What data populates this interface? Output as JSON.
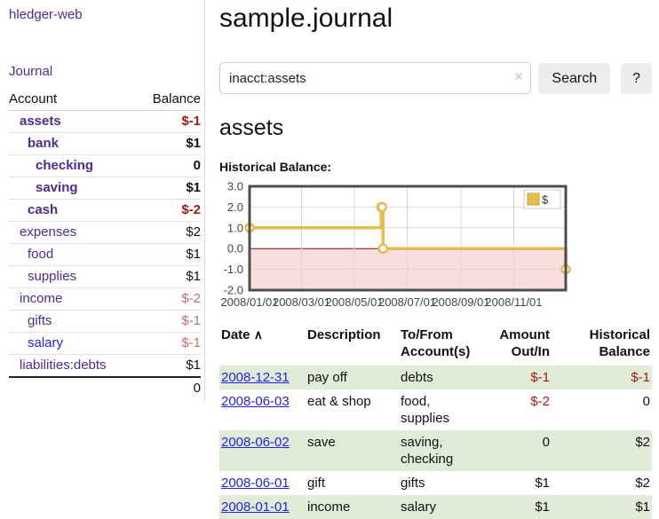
{
  "app": {
    "brand": "hledger-web",
    "nav": {
      "journal": "Journal"
    }
  },
  "sidebar": {
    "header": {
      "account": "Account",
      "balance": "Balance"
    },
    "accounts": [
      {
        "name": "assets",
        "depth": 1,
        "bold": true,
        "link_color": "purple",
        "balance": "$-1",
        "balance_style": "neg-strong"
      },
      {
        "name": "bank",
        "depth": 2,
        "bold": true,
        "link_color": "purple",
        "balance": "$1",
        "balance_style": "bold"
      },
      {
        "name": "checking",
        "depth": 3,
        "bold": true,
        "link_color": "purple",
        "balance": "0",
        "balance_style": "bold"
      },
      {
        "name": "saving",
        "depth": 3,
        "bold": true,
        "link_color": "purple",
        "balance": "$1",
        "balance_style": "bold"
      },
      {
        "name": "cash",
        "depth": 2,
        "bold": true,
        "link_color": "purple",
        "balance": "$-2",
        "balance_style": "neg-strong"
      },
      {
        "name": "expenses",
        "depth": 1,
        "bold": false,
        "link_color": "purple",
        "balance": "$2",
        "balance_style": "normal"
      },
      {
        "name": "food",
        "depth": 2,
        "bold": false,
        "link_color": "purple",
        "balance": "$1",
        "balance_style": "normal"
      },
      {
        "name": "supplies",
        "depth": 2,
        "bold": false,
        "link_color": "purple",
        "balance": "$1",
        "balance_style": "normal"
      },
      {
        "name": "income",
        "depth": 1,
        "bold": false,
        "link_color": "purple",
        "balance": "$-2",
        "balance_style": "neg-soft"
      },
      {
        "name": "gifts",
        "depth": 2,
        "bold": false,
        "link_color": "purple",
        "balance": "$-1",
        "balance_style": "neg-soft"
      },
      {
        "name": "salary",
        "depth": 2,
        "bold": false,
        "link_color": "blue",
        "balance": "$-1",
        "balance_style": "neg-soft"
      },
      {
        "name": "liabilities:debts",
        "depth": 1,
        "bold": false,
        "link_color": "purple",
        "balance": "$1",
        "balance_style": "normal"
      }
    ],
    "total": "0"
  },
  "main": {
    "title": "sample.journal",
    "search": {
      "value": "inacct:assets",
      "clear_icon": "×",
      "button_label": "Search",
      "help_label": "?"
    },
    "account_heading": "assets",
    "chart_heading": "Historical Balance:"
  },
  "chart_data": {
    "type": "line",
    "step": true,
    "title": "Historical Balance",
    "x_start": "2008-01-01",
    "x_end": "2008-12-31",
    "ylim": [
      -2,
      3
    ],
    "y_ticks": [
      "3.0",
      "2.0",
      "1.0",
      "0.0",
      "-1.0",
      "-2.0"
    ],
    "x_ticks": [
      {
        "date": "2008-01-01",
        "label": "2008/01/01"
      },
      {
        "date": "2008-03-01",
        "label": "2008/03/01"
      },
      {
        "date": "2008-05-01",
        "label": "2008/05/01"
      },
      {
        "date": "2008-07-01",
        "label": "2008/07/01"
      },
      {
        "date": "2008-09-01",
        "label": "2008/09/01"
      },
      {
        "date": "2008-11-01",
        "label": "2008/11/01"
      }
    ],
    "series": [
      {
        "name": "$",
        "color": "#e6bc4d",
        "marker_fill": "#ffffff",
        "points": [
          {
            "date": "2008-01-01",
            "value": 1
          },
          {
            "date": "2008-06-01",
            "value": 2
          },
          {
            "date": "2008-06-02",
            "value": 2
          },
          {
            "date": "2008-06-03",
            "value": 0
          },
          {
            "date": "2008-12-31",
            "value": -1
          }
        ]
      }
    ],
    "legend": {
      "label": "$",
      "position": "top-right"
    },
    "grid": true,
    "grid_color": "#d8d8d8",
    "negative_region_color": "#fadede",
    "zero_line_color": "#8e0000",
    "border_color": "#4d4d4d"
  },
  "register": {
    "columns": [
      {
        "label": "Date",
        "sort_icon": "∧"
      },
      {
        "label": "Description"
      },
      {
        "label": "To/From Account(s)"
      },
      {
        "label": "Amount Out/In"
      },
      {
        "label": "Historical Balance"
      }
    ],
    "rows": [
      {
        "date": "2008-12-31",
        "description": "pay off",
        "accounts": "debts",
        "amount": "$-1",
        "amount_negative": true,
        "balance": "$-1",
        "balance_negative": true
      },
      {
        "date": "2008-06-03",
        "description": "eat & shop",
        "accounts": "food, supplies",
        "amount": "$-2",
        "amount_negative": true,
        "balance": "0",
        "balance_negative": false
      },
      {
        "date": "2008-06-02",
        "description": "save",
        "accounts": "saving, checking",
        "amount": "0",
        "amount_negative": false,
        "balance": "$2",
        "balance_negative": false
      },
      {
        "date": "2008-06-01",
        "description": "gift",
        "accounts": "gifts",
        "amount": "$1",
        "amount_negative": false,
        "balance": "$2",
        "balance_negative": false
      },
      {
        "date": "2008-01-01",
        "description": "income",
        "accounts": "salary",
        "amount": "$1",
        "amount_negative": false,
        "balance": "$1",
        "balance_negative": false
      }
    ]
  }
}
